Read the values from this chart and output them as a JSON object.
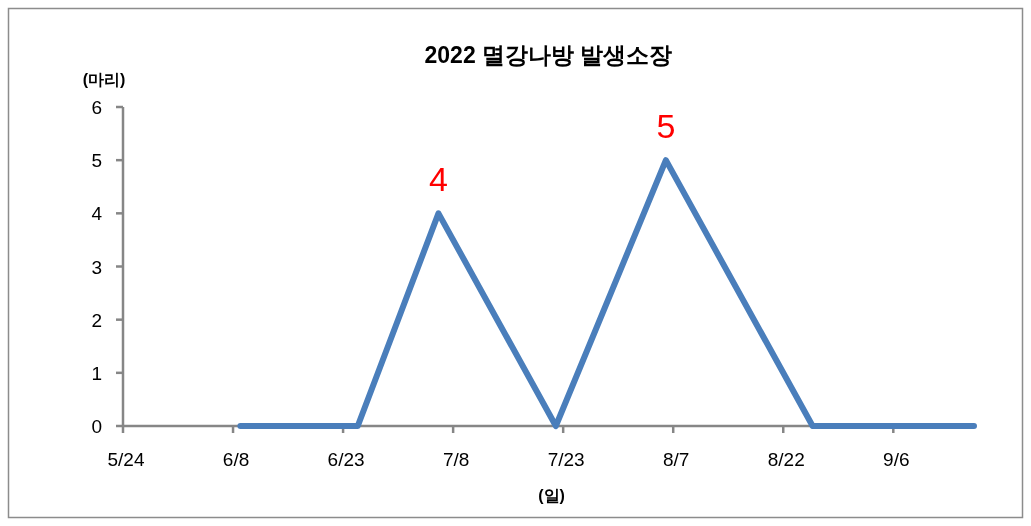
{
  "chart_data": {
    "type": "line",
    "title": "2022 멸강나방 발생소장",
    "xlabel": "(일)",
    "ylabel": "(마리)",
    "x": [
      "--06-09",
      "--06-25",
      "--07-06",
      "--07-22",
      "--08-06",
      "--08-26",
      "--09-17"
    ],
    "values": [
      0,
      0,
      4,
      0,
      5,
      0,
      0
    ],
    "color": "#4a7ebb",
    "value_labels": [
      null,
      null,
      "4",
      null,
      "5",
      null,
      null
    ],
    "xlim": [
      "--05-24",
      "--09-17"
    ],
    "xticks": [
      {
        "value": "--05-24",
        "label": "5/24"
      },
      {
        "value": "--06-08",
        "label": "6/8"
      },
      {
        "value": "--06-23",
        "label": "6/23"
      },
      {
        "value": "--07-08",
        "label": "7/8"
      },
      {
        "value": "--07-23",
        "label": "7/23"
      },
      {
        "value": "--08-07",
        "label": "8/7"
      },
      {
        "value": "--08-22",
        "label": "8/22"
      },
      {
        "value": "--09-06",
        "label": "9/6"
      }
    ],
    "ylim": [
      0,
      6
    ],
    "yticks": [
      0,
      1,
      2,
      3,
      4,
      5,
      6
    ]
  }
}
